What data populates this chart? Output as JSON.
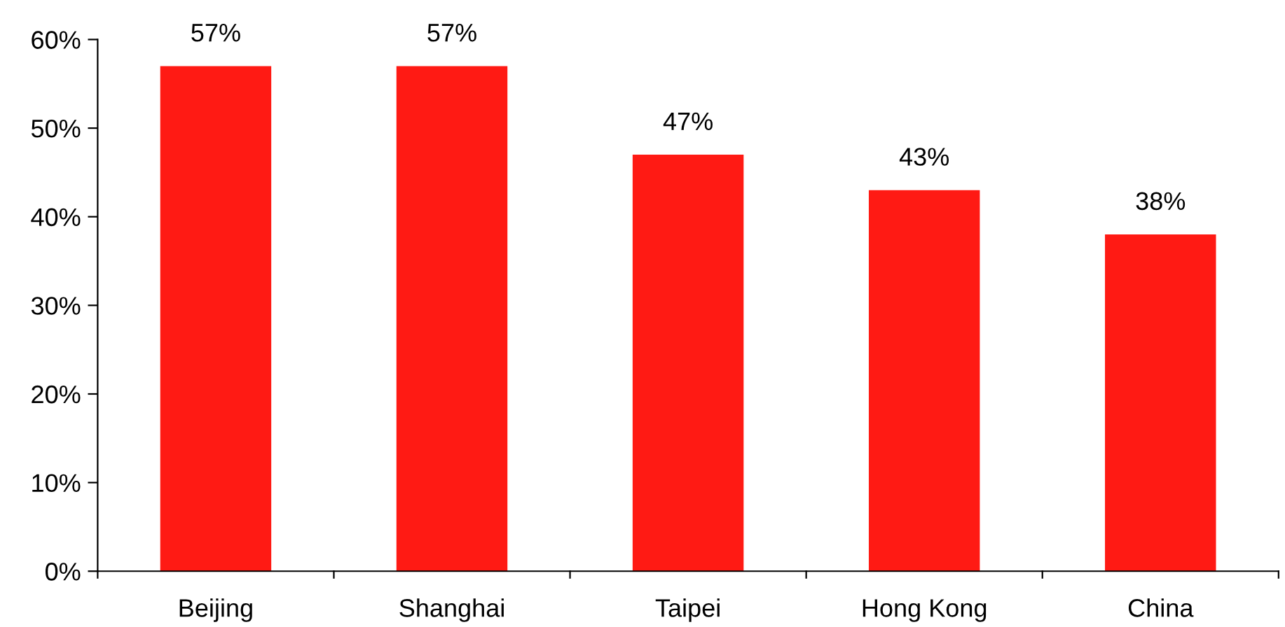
{
  "chart_data": {
    "type": "bar",
    "categories": [
      "Beijing",
      "Shanghai",
      "Taipei",
      "Hong Kong",
      "China"
    ],
    "values": [
      57,
      57,
      47,
      43,
      38
    ],
    "color": "#ff1a14",
    "value_labels": [
      "57%",
      "57%",
      "47%",
      "43%",
      "38%"
    ],
    "ylim": [
      0,
      60
    ],
    "yticks": [
      {
        "value": 0,
        "label": "0%"
      },
      {
        "value": 10,
        "label": "10%"
      },
      {
        "value": 20,
        "label": "20%"
      },
      {
        "value": 30,
        "label": "30%"
      },
      {
        "value": 40,
        "label": "40%"
      },
      {
        "value": 50,
        "label": "50%"
      },
      {
        "value": 60,
        "label": "60%"
      }
    ],
    "grid": false,
    "legend": false
  }
}
